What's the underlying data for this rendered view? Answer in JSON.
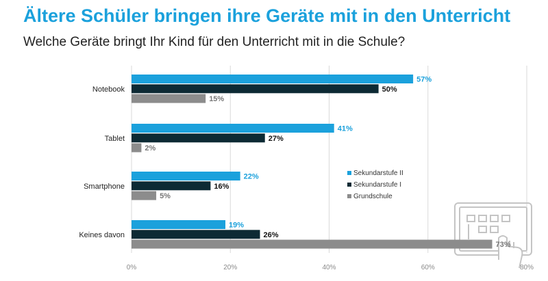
{
  "header": {
    "title": "Ältere Schüler bringen ihre Geräte mit in den Unterricht",
    "subtitle": "Welche Geräte bringt Ihr Kind für den Unterricht mit in die Schule?"
  },
  "chart_data": {
    "type": "bar",
    "orientation": "horizontal",
    "title": "Ältere Schüler bringen ihre Geräte mit in den Unterricht",
    "subtitle": "Welche Geräte bringt Ihr Kind für den Unterricht mit in die Schule?",
    "categories": [
      "Notebook",
      "Tablet",
      "Smartphone",
      "Keines davon"
    ],
    "series": [
      {
        "name": "Sekundarstufe II",
        "color": "#1ba1dc",
        "label_color": "#1ba1dc",
        "values": [
          57,
          41,
          22,
          19
        ]
      },
      {
        "name": "Sekundarstufe I",
        "color": "#0d2a34",
        "label_color": "#111111",
        "values": [
          50,
          27,
          16,
          26
        ]
      },
      {
        "name": "Grundschule",
        "color": "#8c8c8c",
        "label_color": "#777777",
        "values": [
          15,
          2,
          5,
          73
        ]
      }
    ],
    "value_suffix": "%",
    "xlim": [
      0,
      80
    ],
    "xticks": [
      0,
      20,
      40,
      60,
      80
    ],
    "xtick_labels": [
      "0%",
      "20%",
      "40%",
      "60%",
      "80%"
    ],
    "xlabel": "",
    "ylabel": "",
    "grid": true,
    "legend_position": "right"
  }
}
